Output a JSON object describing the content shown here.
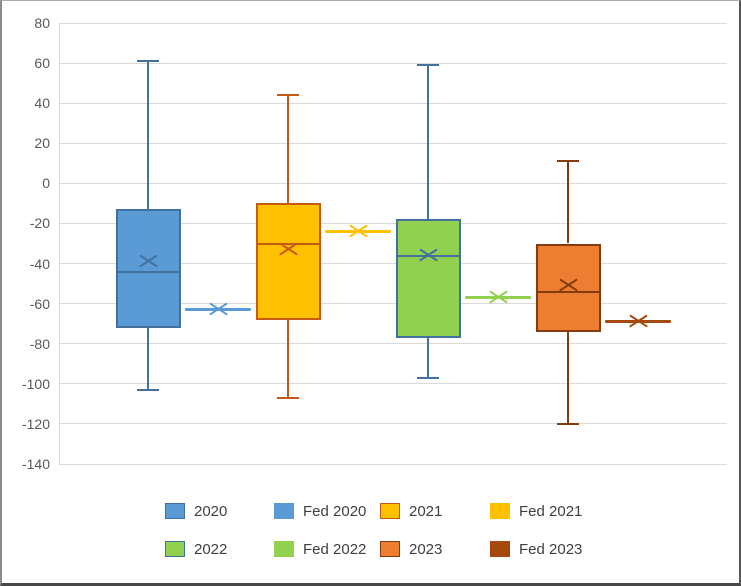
{
  "chart_data": {
    "type": "box",
    "title": "",
    "grid": true,
    "legend_position": "bottom",
    "y_axis": {
      "min": -140,
      "max": 80,
      "tick_step": 20,
      "ticks": [
        80,
        60,
        40,
        20,
        0,
        -20,
        -40,
        -60,
        -80,
        -100,
        -120,
        -140
      ]
    },
    "series": [
      {
        "name": "2020",
        "kind": "box",
        "whisker_high": 61,
        "q3": -13,
        "median": -44,
        "mean": -39,
        "q1": -72,
        "whisker_low": -103,
        "fill": "#5B9BD5",
        "line": "#41719C"
      },
      {
        "name": "Fed 2020",
        "kind": "mean-marker",
        "mean": -63,
        "color": "#5B9BD5"
      },
      {
        "name": "2021",
        "kind": "box",
        "whisker_high": 44,
        "q3": -10,
        "median": -30,
        "mean": -33,
        "q1": -68,
        "whisker_low": -107,
        "fill": "#FFC000",
        "line": "#C55A11"
      },
      {
        "name": "Fed 2021",
        "kind": "mean-marker",
        "mean": -24,
        "color": "#FFC000"
      },
      {
        "name": "2022",
        "kind": "box",
        "whisker_high": 59,
        "q3": -18,
        "median": -36,
        "mean": -36,
        "q1": -77,
        "whisker_low": -97,
        "fill": "#92D050",
        "line": "#41719C"
      },
      {
        "name": "Fed 2022",
        "kind": "mean-marker",
        "mean": -57,
        "color": "#92D050"
      },
      {
        "name": "2023",
        "kind": "box",
        "whisker_high": 11,
        "q3": -30,
        "median": -54,
        "mean": -51,
        "q1": -74,
        "whisker_low": -120,
        "fill": "#ED7D31",
        "line": "#843C0C"
      },
      {
        "name": "Fed 2023",
        "kind": "mean-marker",
        "mean": -69,
        "color": "#A6490F"
      }
    ],
    "legend": {
      "rows": [
        [
          "2020",
          "Fed 2020",
          "2021",
          "Fed 2021"
        ],
        [
          "2022",
          "Fed 2022",
          "2023",
          "Fed 2023"
        ]
      ]
    }
  }
}
